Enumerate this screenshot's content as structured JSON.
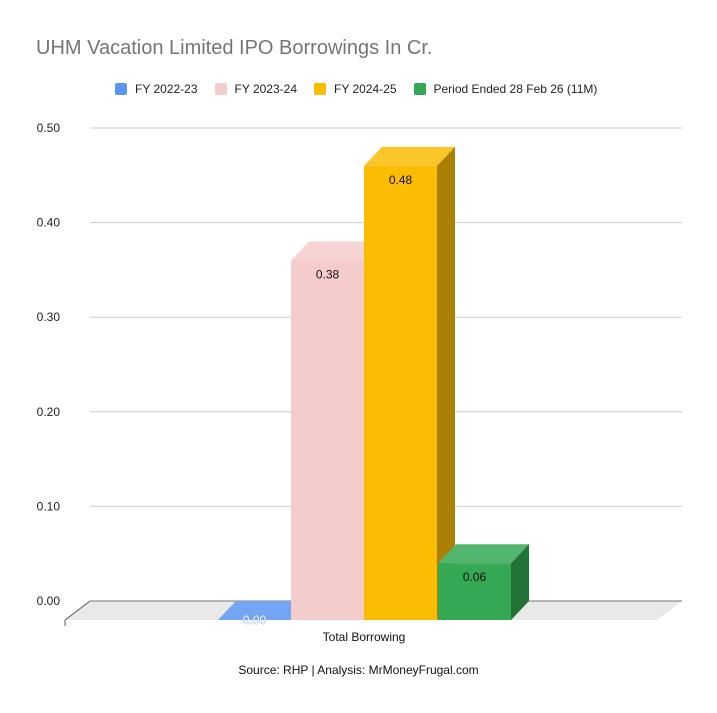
{
  "chart_data": {
    "type": "bar",
    "title": "UHM Vacation Limited IPO Borrowings In Cr.",
    "categories": [
      "Total Borrowing"
    ],
    "series": [
      {
        "name": "FY 2022-23",
        "values": [
          0.0
        ],
        "label": "0.00",
        "color": "#5b95f2"
      },
      {
        "name": "FY 2023-24",
        "values": [
          0.38
        ],
        "label": "0.38",
        "color": "#f4cccc"
      },
      {
        "name": "FY 2024-25",
        "values": [
          0.48
        ],
        "label": "0.48",
        "color": "#fbbc04"
      },
      {
        "name": "Period Ended 28 Feb 26 (11M)",
        "values": [
          0.06
        ],
        "label": "0.06",
        "color": "#34a853"
      }
    ],
    "y_ticks": [
      "0.00",
      "0.10",
      "0.20",
      "0.30",
      "0.40",
      "0.50"
    ],
    "ylim": [
      0,
      0.5
    ],
    "xlabel": "",
    "ylabel": "",
    "grid": true,
    "legend_position": "top",
    "three_d": true
  },
  "source_note": "Source: RHP | Analysis: MrMoneyFrugal.com"
}
